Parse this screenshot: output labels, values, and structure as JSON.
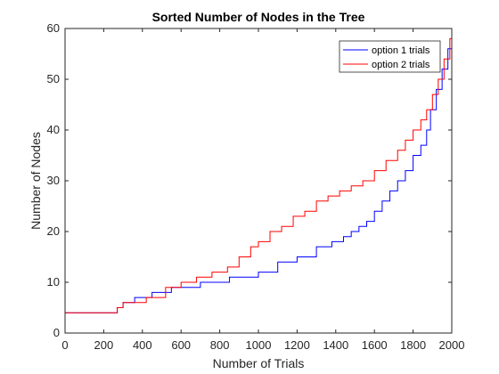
{
  "chart_data": {
    "type": "line",
    "title": "Sorted Number of Nodes in the Tree",
    "xlabel": "Number of Trials",
    "ylabel": "Number of Nodes",
    "xlim": [
      0,
      2000
    ],
    "ylim": [
      0,
      60
    ],
    "xticks": [
      "0",
      "200",
      "400",
      "600",
      "800",
      "1000",
      "1200",
      "1400",
      "1600",
      "1800",
      "2000"
    ],
    "yticks": [
      "0",
      "10",
      "20",
      "30",
      "40",
      "50",
      "60"
    ],
    "grid": false,
    "legend_position": "top-right",
    "step": true,
    "series": [
      {
        "name": "option 1 trials",
        "color": "#0000ff",
        "x": [
          0,
          255,
          270,
          300,
          360,
          450,
          550,
          700,
          850,
          1000,
          1100,
          1200,
          1300,
          1380,
          1440,
          1480,
          1520,
          1560,
          1600,
          1640,
          1680,
          1720,
          1760,
          1800,
          1840,
          1870,
          1890,
          1920,
          1950,
          1980,
          2000
        ],
        "values": [
          4,
          4,
          5,
          6,
          7,
          8,
          9,
          10,
          11,
          12,
          14,
          15,
          17,
          18,
          19,
          20,
          21,
          22,
          24,
          26,
          28,
          30,
          32,
          35,
          37,
          40,
          44,
          48,
          52,
          56,
          60
        ]
      },
      {
        "name": "option 2 trials",
        "color": "#ff0000",
        "x": [
          0,
          255,
          270,
          300,
          350,
          420,
          520,
          600,
          680,
          760,
          840,
          900,
          960,
          1000,
          1060,
          1120,
          1180,
          1240,
          1300,
          1360,
          1420,
          1480,
          1540,
          1600,
          1660,
          1720,
          1760,
          1800,
          1840,
          1870,
          1900,
          1930,
          1960,
          1990,
          2000
        ],
        "values": [
          4,
          4,
          5,
          6,
          6,
          7,
          9,
          10,
          11,
          12,
          13,
          15,
          17,
          18,
          20,
          21,
          23,
          24,
          26,
          27,
          28,
          29,
          30,
          32,
          34,
          36,
          38,
          40,
          42,
          44,
          47,
          50,
          54,
          58,
          60
        ]
      }
    ]
  }
}
